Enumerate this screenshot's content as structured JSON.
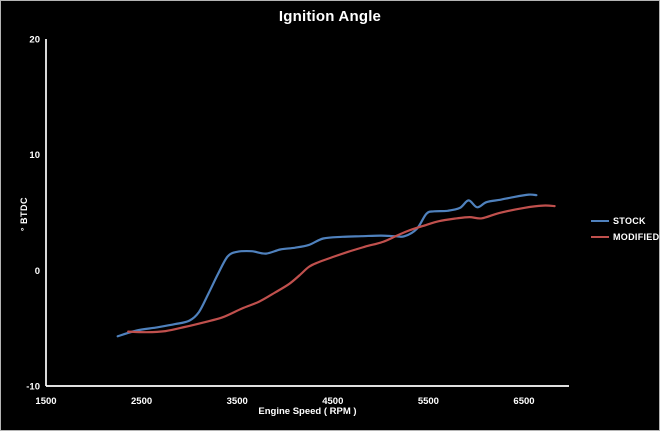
{
  "chart": {
    "title": "Ignition Angle",
    "background_color": "#000000",
    "border_color": "#B4B4B4",
    "text_color": "#FFFFFF",
    "axis_color": "#FFFFFF",
    "x_axis": {
      "title": "Engine Speed ( RPM )"
    },
    "y_axis": {
      "title": "° BTDC"
    },
    "legend": {
      "items": [
        {
          "label": "STOCK",
          "color": "#4F81BD"
        },
        {
          "label": "MODIFIED",
          "color": "#C0504D"
        }
      ]
    }
  },
  "chart_data": {
    "type": "line",
    "title": "Ignition Angle",
    "xlabel": "Engine Speed ( RPM )",
    "ylabel": "° BTDC",
    "xlim": [
      1500,
      6970
    ],
    "ylim": [
      -10,
      20
    ],
    "x_ticks": [
      1500,
      2500,
      3500,
      4500,
      5500,
      6500
    ],
    "y_ticks": [
      -10,
      0,
      10,
      20
    ],
    "grid": false,
    "legend_position": "right",
    "series": [
      {
        "name": "STOCK",
        "color": "#4F81BD",
        "points": [
          [
            2250,
            -5.7
          ],
          [
            2450,
            -5.2
          ],
          [
            2650,
            -4.95
          ],
          [
            2850,
            -4.65
          ],
          [
            3000,
            -4.35
          ],
          [
            3100,
            -3.6
          ],
          [
            3200,
            -2.0
          ],
          [
            3300,
            -0.3
          ],
          [
            3400,
            1.2
          ],
          [
            3500,
            1.6
          ],
          [
            3650,
            1.65
          ],
          [
            3800,
            1.45
          ],
          [
            3950,
            1.8
          ],
          [
            4100,
            1.95
          ],
          [
            4250,
            2.2
          ],
          [
            4400,
            2.75
          ],
          [
            4600,
            2.9
          ],
          [
            4800,
            2.95
          ],
          [
            5000,
            3.0
          ],
          [
            5150,
            2.95
          ],
          [
            5250,
            2.95
          ],
          [
            5380,
            3.6
          ],
          [
            5480,
            4.9
          ],
          [
            5560,
            5.1
          ],
          [
            5700,
            5.15
          ],
          [
            5830,
            5.4
          ],
          [
            5920,
            6.05
          ],
          [
            6010,
            5.45
          ],
          [
            6110,
            5.9
          ],
          [
            6250,
            6.1
          ],
          [
            6400,
            6.35
          ],
          [
            6550,
            6.55
          ],
          [
            6630,
            6.5
          ]
        ]
      },
      {
        "name": "MODIFIED",
        "color": "#C0504D",
        "points": [
          [
            2360,
            -5.3
          ],
          [
            2550,
            -5.35
          ],
          [
            2750,
            -5.25
          ],
          [
            2950,
            -4.9
          ],
          [
            3150,
            -4.5
          ],
          [
            3350,
            -4.05
          ],
          [
            3550,
            -3.3
          ],
          [
            3730,
            -2.7
          ],
          [
            3900,
            -1.9
          ],
          [
            4040,
            -1.2
          ],
          [
            4150,
            -0.45
          ],
          [
            4250,
            0.3
          ],
          [
            4350,
            0.7
          ],
          [
            4500,
            1.15
          ],
          [
            4660,
            1.6
          ],
          [
            4840,
            2.05
          ],
          [
            5020,
            2.45
          ],
          [
            5170,
            3.0
          ],
          [
            5300,
            3.45
          ],
          [
            5450,
            3.85
          ],
          [
            5610,
            4.25
          ],
          [
            5800,
            4.5
          ],
          [
            5930,
            4.6
          ],
          [
            6060,
            4.5
          ],
          [
            6240,
            4.95
          ],
          [
            6500,
            5.4
          ],
          [
            6700,
            5.6
          ],
          [
            6820,
            5.55
          ]
        ]
      }
    ]
  }
}
